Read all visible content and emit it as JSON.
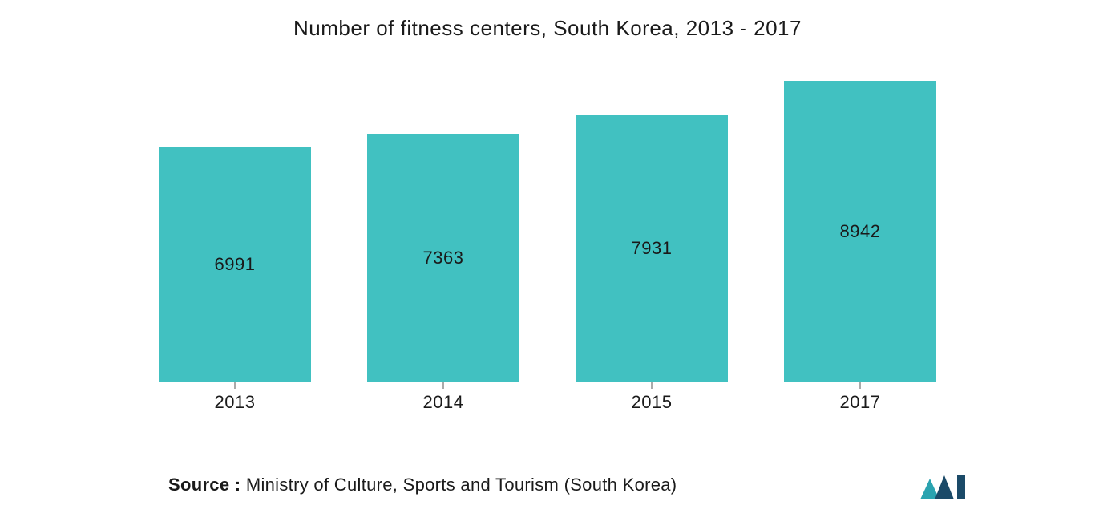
{
  "chart": {
    "type": "bar",
    "title": "Number of fitness centers, South Korea, 2013 - 2017",
    "title_fontsize": 26,
    "title_color": "#1a1a1a",
    "categories": [
      "2013",
      "2014",
      "2015",
      "2017"
    ],
    "values": [
      6991,
      7363,
      7931,
      8942
    ],
    "bar_color": "#41c1c1",
    "label_color": "#1a1a1a",
    "label_fontsize": 22,
    "category_fontsize": 22,
    "max_value": 8942,
    "background_color": "#ffffff",
    "axis_color": "#555555",
    "bar_gap": 70
  },
  "source": {
    "prefix": "Source :",
    "text": " Ministry of Culture, Sports and Tourism (South Korea)",
    "fontsize": 22,
    "color": "#1a1a1a"
  },
  "logo": {
    "primary_color": "#2aa3b0",
    "secondary_color": "#1b4a68"
  }
}
